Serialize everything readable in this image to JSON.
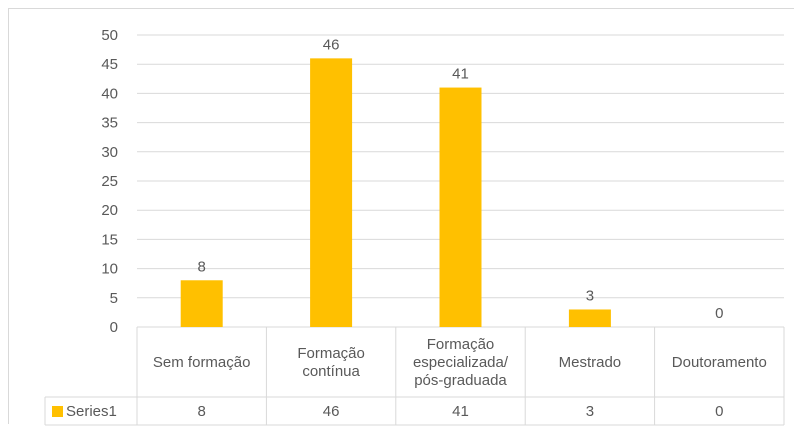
{
  "chart_data": {
    "type": "bar",
    "categories": [
      [
        "Sem formação"
      ],
      [
        "Formação",
        "contínua"
      ],
      [
        "Formação",
        "especializada/",
        "pós-graduada"
      ],
      [
        "Mestrado"
      ],
      [
        "Doutoramento"
      ]
    ],
    "series": [
      {
        "name": "Series1",
        "values": [
          8,
          46,
          41,
          3,
          0
        ],
        "color": "#ffc000"
      }
    ],
    "ylim": [
      0,
      50
    ],
    "yticks": [
      0,
      5,
      10,
      15,
      20,
      25,
      30,
      35,
      40,
      45,
      50
    ],
    "grid": true,
    "data_labels": [
      "8",
      "46",
      "41",
      "3",
      "0"
    ],
    "data_table": true,
    "legend": "data-table-left"
  },
  "colors": {
    "bar": "#ffc000",
    "grid": "#d9d9d9",
    "text": "#595959"
  }
}
